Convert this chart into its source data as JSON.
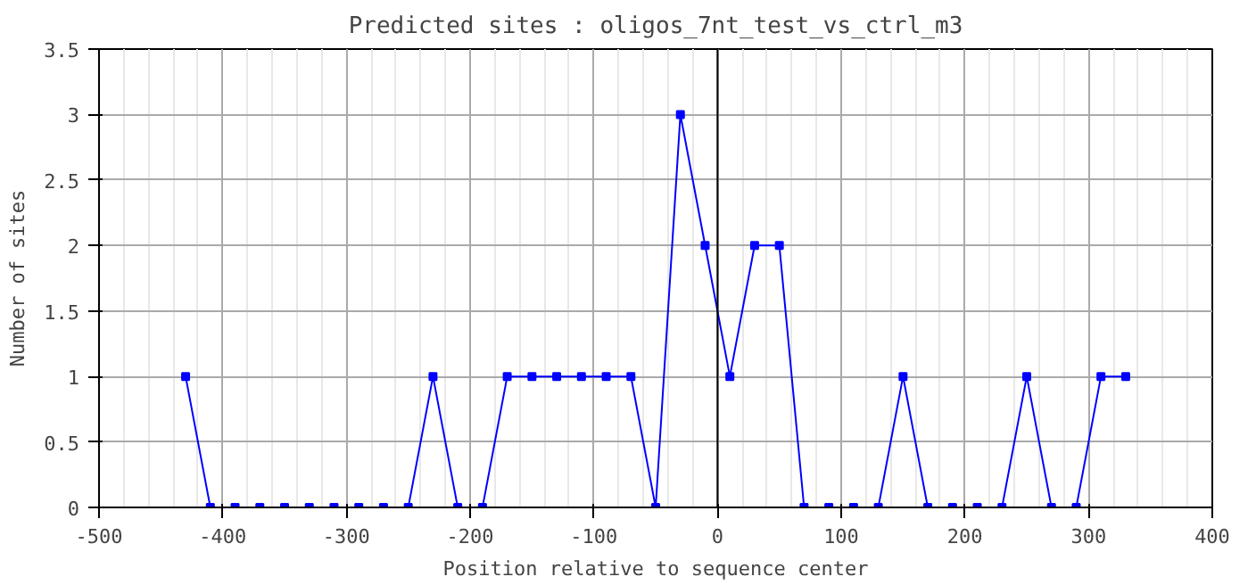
{
  "chart_data": {
    "type": "line",
    "title": "Predicted sites : oligos_7nt_test_vs_ctrl_m3",
    "xlabel": "Position relative to sequence center",
    "ylabel": "Number of sites",
    "x": [
      -430,
      -410,
      -390,
      -370,
      -350,
      -330,
      -310,
      -290,
      -270,
      -250,
      -230,
      -210,
      -190,
      -170,
      -150,
      -130,
      -110,
      -90,
      -70,
      -50,
      -30,
      -10,
      10,
      30,
      50,
      70,
      90,
      110,
      130,
      150,
      170,
      190,
      210,
      230,
      250,
      270,
      290,
      310,
      330
    ],
    "series": [
      {
        "color": "#0000ff",
        "values": [
          1,
          0,
          0,
          0,
          0,
          0,
          0,
          0,
          0,
          0,
          1,
          0,
          0,
          1,
          1,
          1,
          1,
          1,
          1,
          0,
          3,
          2,
          1,
          2,
          2,
          0,
          0,
          0,
          0,
          1,
          0,
          0,
          0,
          0,
          1,
          0,
          0,
          1,
          1
        ]
      }
    ],
    "xlim": [
      -500,
      400
    ],
    "xticks": [
      -500,
      -400,
      -300,
      -200,
      -100,
      0,
      100,
      200,
      300,
      400
    ],
    "ylim": [
      0,
      3.5
    ],
    "yticks": [
      0,
      0.5,
      1,
      1.5,
      2,
      2.5,
      3,
      3.5
    ],
    "ref_lines": [
      {
        "axis": "x",
        "value": 0,
        "color": "#000000"
      }
    ],
    "grid": true,
    "marker": "square",
    "line_style": "solid"
  }
}
